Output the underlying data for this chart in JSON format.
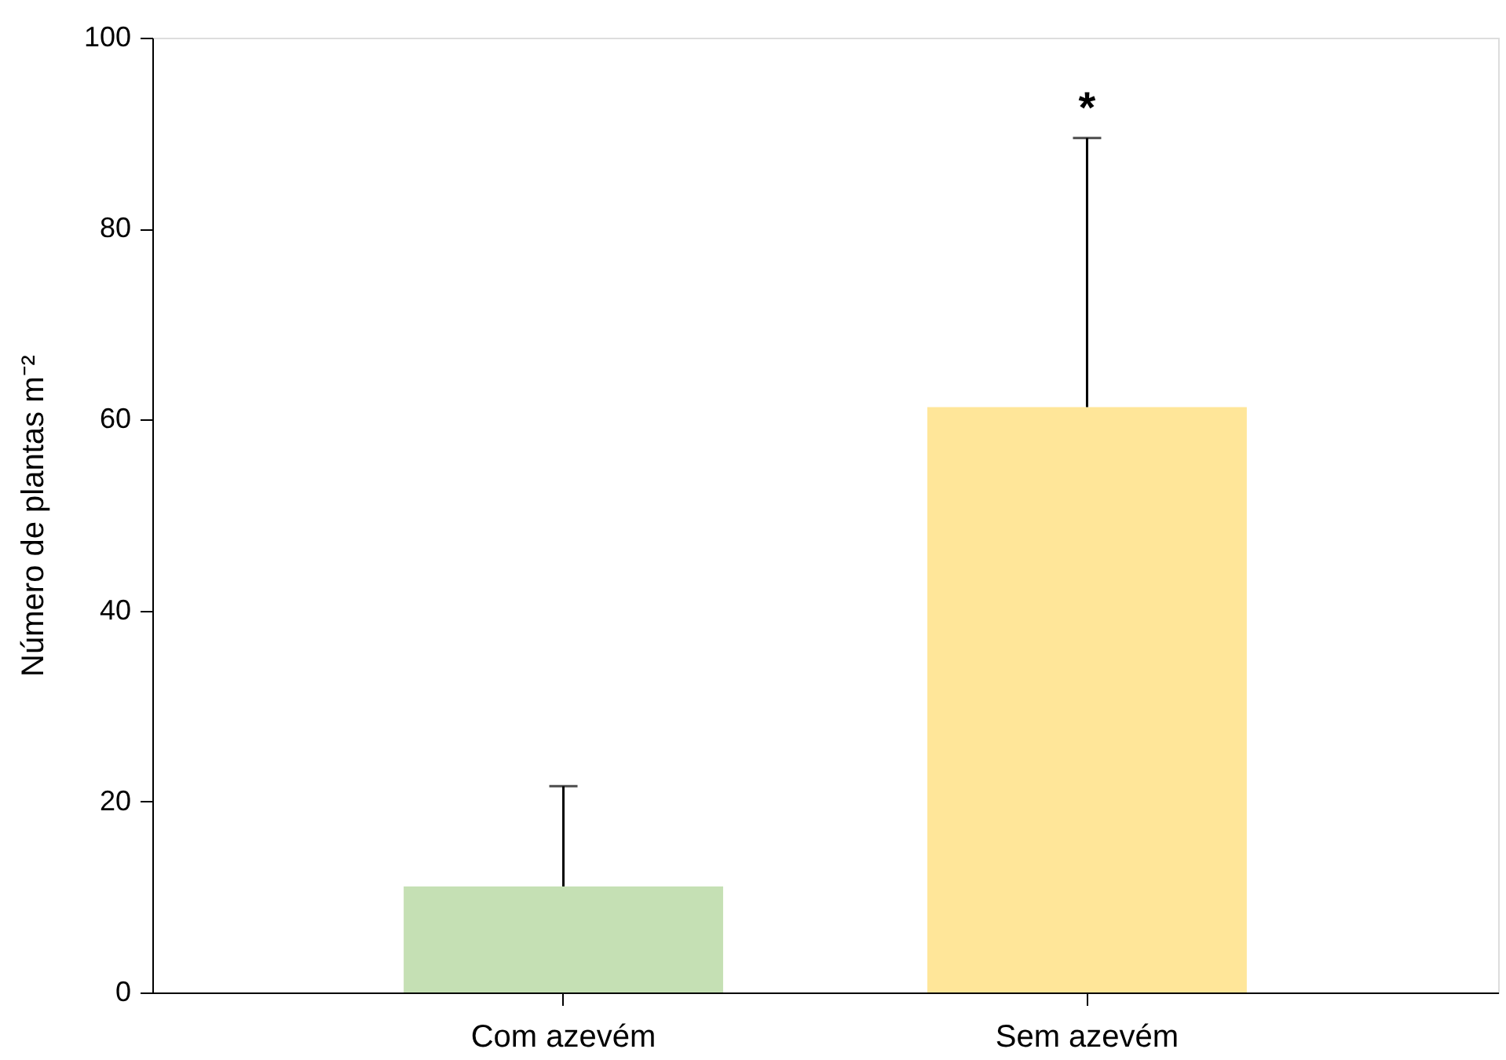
{
  "chart_data": {
    "type": "bar",
    "ylabel": "Número de plantas m⁻²",
    "categories": [
      "Com azevém",
      "Sem azevém"
    ],
    "values": [
      11.1,
      61.3
    ],
    "colors": [
      "#c5e0b4",
      "#ffe699"
    ],
    "errors": [
      [
        11.1,
        21.6
      ],
      [
        61.3,
        89.5
      ]
    ],
    "ylim": [
      0,
      100
    ],
    "yticks": [
      0,
      20,
      40,
      60,
      80,
      100
    ],
    "annotations": [
      "*"
    ],
    "grid": false
  }
}
